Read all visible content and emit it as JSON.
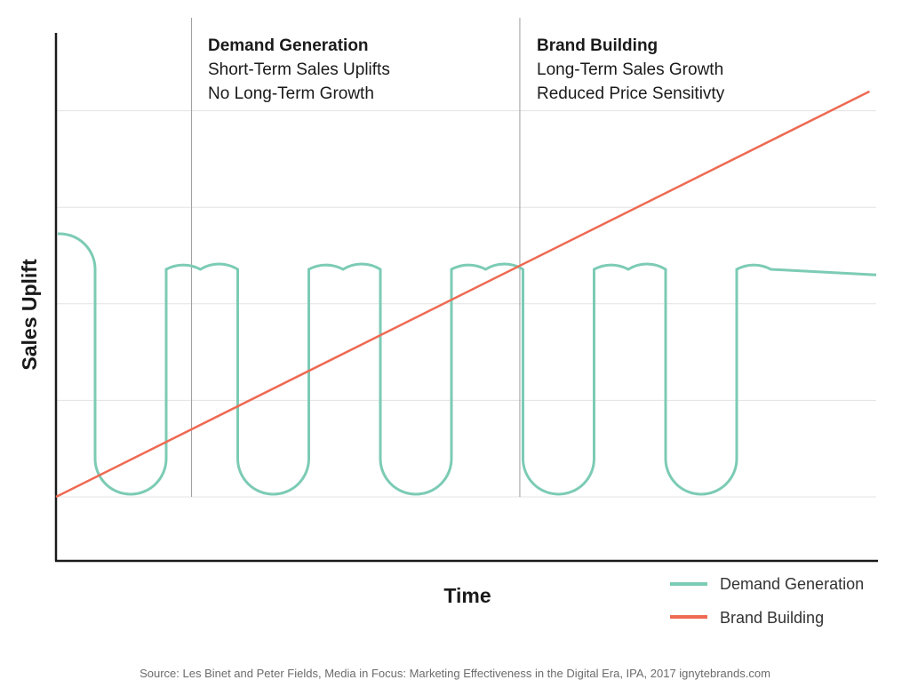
{
  "chart_data": {
    "type": "line",
    "xlabel": "Time",
    "ylabel": "Sales Uplift",
    "xlim": [
      0,
      11.5
    ],
    "ylim": [
      -2.5,
      11
    ],
    "grid": true,
    "gridlines_y": [
      0,
      2,
      4,
      6,
      8
    ],
    "dividers_x": [
      1.9,
      6.5
    ],
    "legend_position": "bottom-right",
    "series": [
      {
        "name": "Demand Generation",
        "color": "#7ccbb5",
        "shape": "square wave with rounded corners",
        "start_x": 0,
        "end_x": 11.5,
        "period": 4.0,
        "high": 5.4,
        "low": 0,
        "last_value": 4.6
      },
      {
        "name": "Brand Building",
        "color": "#ee6a53",
        "shape": "straight line",
        "x": [
          0,
          11.4
        ],
        "y": [
          0,
          8.4
        ]
      }
    ],
    "annotations": [
      {
        "title": "Demand Generation",
        "lines": [
          "Short-Term Sales Uplifts",
          "No Long-Term Growth"
        ]
      },
      {
        "title": "Brand Building",
        "lines": [
          "Long-Term Sales Growth",
          "Reduced Price Sensitivty"
        ]
      }
    ],
    "source": "Source: Les Binet and Peter Fields, Media in Focus: Marketing Effectiveness in the Digital Era, IPA, 2017   ignytebrands.com"
  }
}
